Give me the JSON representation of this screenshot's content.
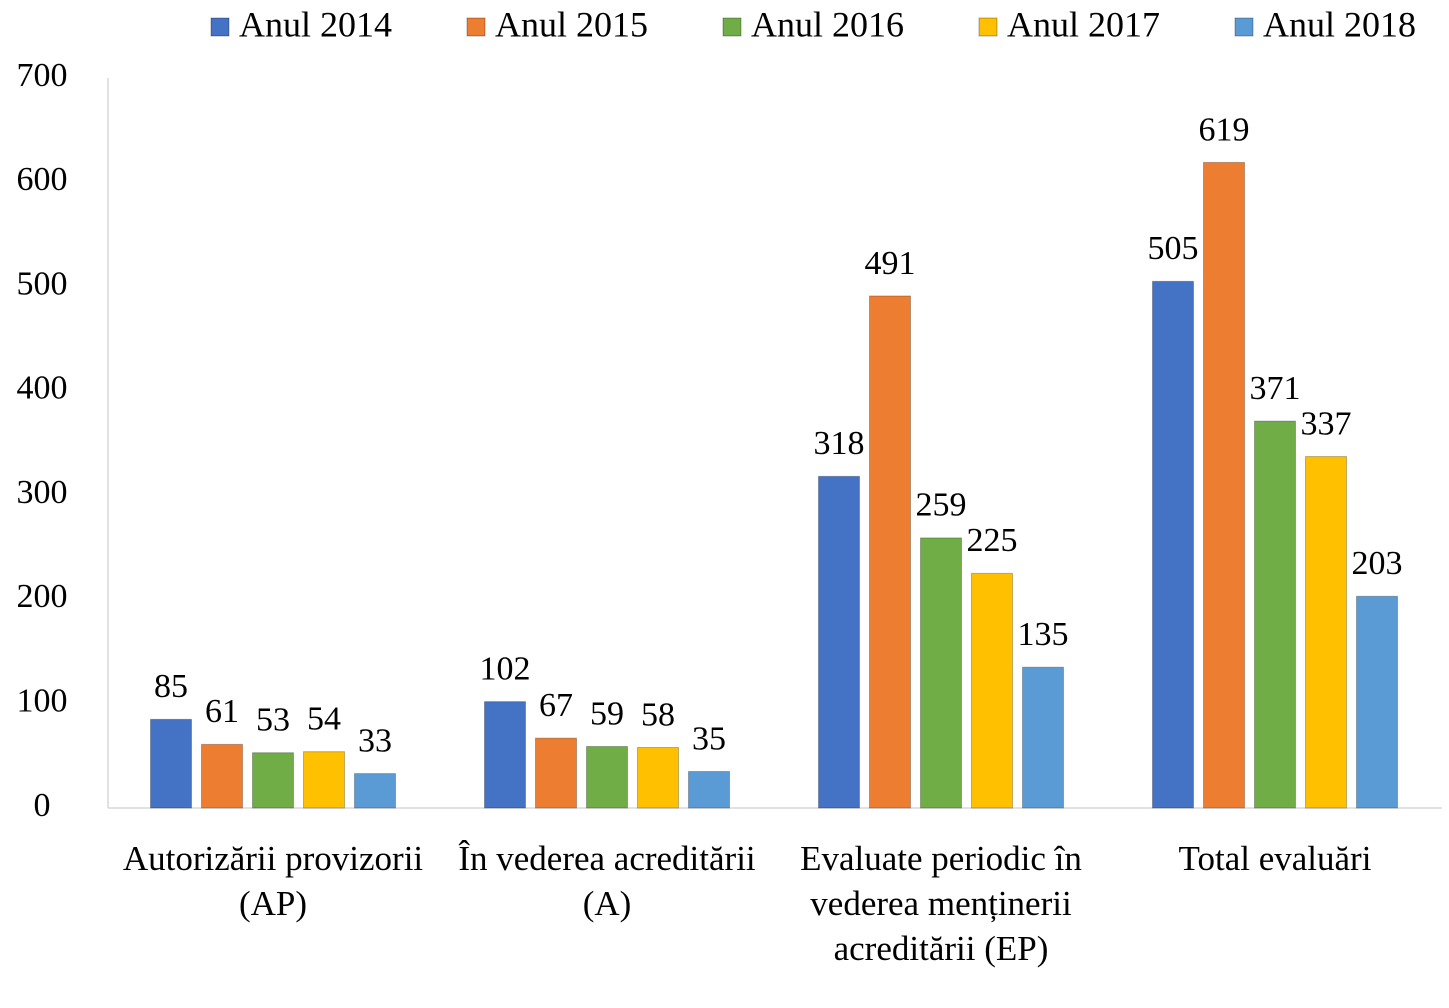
{
  "chart_data": {
    "type": "bar",
    "categories": [
      "Autorizării provizorii (AP)",
      "În vederea acreditării (A)",
      "Evaluate periodic în vederea menținerii acreditării (EP)",
      "Total evaluări"
    ],
    "series": [
      {
        "name": "Anul 2014",
        "color": "#4472c4",
        "values": [
          85,
          102,
          318,
          505
        ]
      },
      {
        "name": "Anul 2015",
        "color": "#ed7d31",
        "values": [
          61,
          67,
          491,
          619
        ]
      },
      {
        "name": "Anul 2016",
        "color": "#70ad47",
        "values": [
          53,
          59,
          259,
          371
        ]
      },
      {
        "name": "Anul 2017",
        "color": "#ffc000",
        "values": [
          54,
          58,
          225,
          337
        ]
      },
      {
        "name": "Anul 2018",
        "color": "#5b9bd5",
        "values": [
          33,
          35,
          135,
          203
        ]
      }
    ],
    "ylim": [
      0,
      700
    ],
    "yticks": [
      0,
      100,
      200,
      300,
      400,
      500,
      600,
      700
    ],
    "legend": "top"
  }
}
